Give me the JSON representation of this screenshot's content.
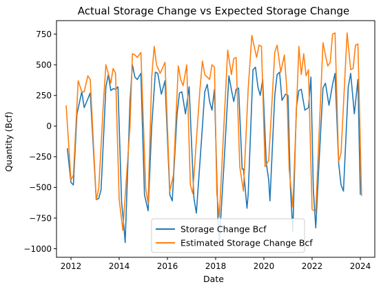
{
  "chart_data": {
    "type": "line",
    "title": "Actual Storage Change vs Expected Storage Change",
    "xlabel": "Date",
    "ylabel": "Quantity (Bcf)",
    "xlim": [
      2011.4,
      2024.6
    ],
    "ylim": [
      -1070,
      860
    ],
    "x_ticks": [
      2012,
      2014,
      2016,
      2018,
      2020,
      2022,
      2024
    ],
    "x_tick_labels": [
      "2012",
      "2014",
      "2016",
      "2018",
      "2020",
      "2022",
      "2024"
    ],
    "y_ticks": [
      -1000,
      -750,
      -500,
      -250,
      0,
      250,
      500,
      750
    ],
    "y_tick_labels": [
      "−1000",
      "−750",
      "−500",
      "−250",
      "0",
      "250",
      "500",
      "750"
    ],
    "grid": false,
    "legend_position": "lower-center",
    "series": [
      {
        "name": "Storage Change Bcf",
        "color": "#1f77b4",
        "points": [
          [
            2011.85,
            -180
          ],
          [
            2012.0,
            -460
          ],
          [
            2012.1,
            -480
          ],
          [
            2012.25,
            100
          ],
          [
            2012.45,
            280
          ],
          [
            2012.55,
            150
          ],
          [
            2012.8,
            270
          ],
          [
            2013.05,
            -600
          ],
          [
            2013.15,
            -590
          ],
          [
            2013.25,
            -520
          ],
          [
            2013.45,
            320
          ],
          [
            2013.55,
            420
          ],
          [
            2013.65,
            290
          ],
          [
            2013.75,
            305
          ],
          [
            2013.85,
            300
          ],
          [
            2013.95,
            320
          ],
          [
            2014.1,
            -620
          ],
          [
            2014.2,
            -830
          ],
          [
            2014.25,
            -950
          ],
          [
            2014.45,
            200
          ],
          [
            2014.55,
            500
          ],
          [
            2014.65,
            400
          ],
          [
            2014.75,
            380
          ],
          [
            2014.9,
            430
          ],
          [
            2015.05,
            -560
          ],
          [
            2015.2,
            -690
          ],
          [
            2015.35,
            0
          ],
          [
            2015.5,
            440
          ],
          [
            2015.6,
            430
          ],
          [
            2015.75,
            260
          ],
          [
            2015.9,
            370
          ],
          [
            2016.1,
            -560
          ],
          [
            2016.2,
            -610
          ],
          [
            2016.4,
            100
          ],
          [
            2016.5,
            270
          ],
          [
            2016.6,
            280
          ],
          [
            2016.75,
            100
          ],
          [
            2016.9,
            320
          ],
          [
            2017.1,
            -590
          ],
          [
            2017.2,
            -710
          ],
          [
            2017.4,
            -150
          ],
          [
            2017.55,
            280
          ],
          [
            2017.65,
            340
          ],
          [
            2017.75,
            200
          ],
          [
            2017.85,
            130
          ],
          [
            2017.95,
            300
          ],
          [
            2018.1,
            -790
          ],
          [
            2018.15,
            -950
          ],
          [
            2018.35,
            -300
          ],
          [
            2018.55,
            410
          ],
          [
            2018.65,
            300
          ],
          [
            2018.75,
            200
          ],
          [
            2018.85,
            300
          ],
          [
            2018.95,
            310
          ],
          [
            2019.1,
            -350
          ],
          [
            2019.15,
            -350
          ],
          [
            2019.3,
            -670
          ],
          [
            2019.35,
            -560
          ],
          [
            2019.55,
            460
          ],
          [
            2019.65,
            480
          ],
          [
            2019.75,
            320
          ],
          [
            2019.85,
            250
          ],
          [
            2019.95,
            380
          ],
          [
            2020.1,
            -300
          ],
          [
            2020.2,
            -440
          ],
          [
            2020.25,
            -610
          ],
          [
            2020.45,
            250
          ],
          [
            2020.55,
            420
          ],
          [
            2020.65,
            440
          ],
          [
            2020.75,
            210
          ],
          [
            2020.9,
            260
          ],
          [
            2021.0,
            250
          ],
          [
            2021.1,
            -500
          ],
          [
            2021.2,
            -860
          ],
          [
            2021.35,
            150
          ],
          [
            2021.45,
            290
          ],
          [
            2021.55,
            300
          ],
          [
            2021.7,
            130
          ],
          [
            2021.85,
            150
          ],
          [
            2021.95,
            400
          ],
          [
            2022.05,
            -520
          ],
          [
            2022.15,
            -830
          ],
          [
            2022.3,
            -250
          ],
          [
            2022.45,
            310
          ],
          [
            2022.55,
            350
          ],
          [
            2022.7,
            170
          ],
          [
            2022.85,
            340
          ],
          [
            2022.95,
            430
          ],
          [
            2023.1,
            -300
          ],
          [
            2023.2,
            -480
          ],
          [
            2023.3,
            -530
          ],
          [
            2023.5,
            320
          ],
          [
            2023.6,
            430
          ],
          [
            2023.75,
            100
          ],
          [
            2023.9,
            380
          ],
          [
            2024.0,
            -560
          ]
        ]
      },
      {
        "name": "Estimated Storage Change Bcf",
        "color": "#ff7f0e",
        "points": [
          [
            2011.8,
            170
          ],
          [
            2012.0,
            -440
          ],
          [
            2012.1,
            -400
          ],
          [
            2012.3,
            370
          ],
          [
            2012.45,
            280
          ],
          [
            2012.55,
            280
          ],
          [
            2012.7,
            410
          ],
          [
            2012.8,
            380
          ],
          [
            2013.05,
            -600
          ],
          [
            2013.15,
            -510
          ],
          [
            2013.35,
            200
          ],
          [
            2013.45,
            500
          ],
          [
            2013.55,
            430
          ],
          [
            2013.65,
            350
          ],
          [
            2013.75,
            470
          ],
          [
            2013.85,
            430
          ],
          [
            2014.0,
            -600
          ],
          [
            2014.15,
            -850
          ],
          [
            2014.45,
            0
          ],
          [
            2014.55,
            590
          ],
          [
            2014.65,
            580
          ],
          [
            2014.75,
            560
          ],
          [
            2014.9,
            600
          ],
          [
            2015.1,
            -510
          ],
          [
            2015.2,
            -630
          ],
          [
            2015.35,
            400
          ],
          [
            2015.45,
            650
          ],
          [
            2015.55,
            500
          ],
          [
            2015.7,
            430
          ],
          [
            2015.9,
            520
          ],
          [
            2016.1,
            -530
          ],
          [
            2016.25,
            -400
          ],
          [
            2016.45,
            490
          ],
          [
            2016.55,
            380
          ],
          [
            2016.65,
            330
          ],
          [
            2016.8,
            500
          ],
          [
            2016.95,
            -480
          ],
          [
            2017.05,
            -550
          ],
          [
            2017.35,
            300
          ],
          [
            2017.45,
            530
          ],
          [
            2017.55,
            420
          ],
          [
            2017.65,
            400
          ],
          [
            2017.75,
            380
          ],
          [
            2017.85,
            500
          ],
          [
            2017.95,
            480
          ],
          [
            2018.05,
            -550
          ],
          [
            2018.15,
            -740
          ],
          [
            2018.4,
            230
          ],
          [
            2018.5,
            620
          ],
          [
            2018.65,
            420
          ],
          [
            2018.75,
            550
          ],
          [
            2018.85,
            560
          ],
          [
            2019.0,
            -330
          ],
          [
            2019.15,
            -530
          ],
          [
            2019.35,
            300
          ],
          [
            2019.5,
            740
          ],
          [
            2019.6,
            650
          ],
          [
            2019.7,
            560
          ],
          [
            2019.8,
            660
          ],
          [
            2019.9,
            650
          ],
          [
            2020.05,
            -330
          ],
          [
            2020.2,
            -280
          ],
          [
            2020.45,
            600
          ],
          [
            2020.55,
            660
          ],
          [
            2020.7,
            440
          ],
          [
            2020.85,
            580
          ],
          [
            2020.95,
            300
          ],
          [
            2021.05,
            -350
          ],
          [
            2021.2,
            -660
          ],
          [
            2021.45,
            650
          ],
          [
            2021.55,
            420
          ],
          [
            2021.65,
            590
          ],
          [
            2021.75,
            410
          ],
          [
            2021.85,
            460
          ],
          [
            2022.0,
            -680
          ],
          [
            2022.15,
            -700
          ],
          [
            2022.45,
            680
          ],
          [
            2022.55,
            580
          ],
          [
            2022.65,
            490
          ],
          [
            2022.75,
            520
          ],
          [
            2022.85,
            750
          ],
          [
            2022.95,
            760
          ],
          [
            2023.1,
            -290
          ],
          [
            2023.2,
            -220
          ],
          [
            2023.45,
            760
          ],
          [
            2023.6,
            460
          ],
          [
            2023.7,
            470
          ],
          [
            2023.8,
            660
          ],
          [
            2023.9,
            670
          ],
          [
            2024.05,
            -570
          ]
        ]
      }
    ]
  }
}
